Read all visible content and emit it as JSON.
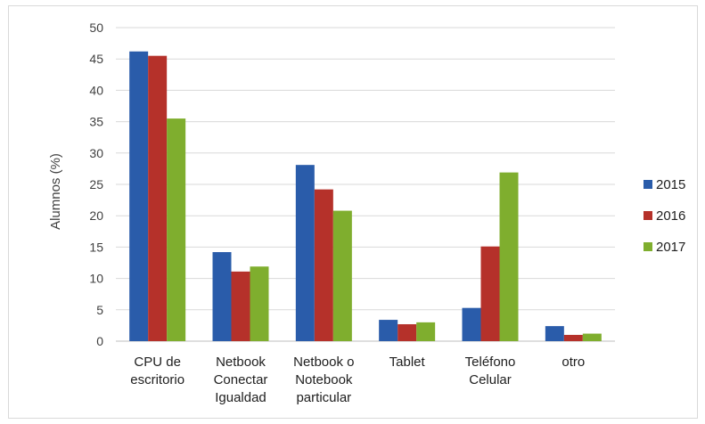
{
  "chart_data": {
    "type": "bar",
    "categories": [
      [
        "CPU de",
        "escritorio"
      ],
      [
        "Netbook",
        "Conectar",
        "Igualdad"
      ],
      [
        "Netbook o",
        "Notebook",
        "particular"
      ],
      [
        "Tablet"
      ],
      [
        "Teléfono",
        "Celular"
      ],
      [
        "otro"
      ]
    ],
    "series": [
      {
        "name": "2015",
        "color": "#2a5caa",
        "values": [
          46.2,
          14.2,
          28.1,
          3.4,
          5.3,
          2.4
        ]
      },
      {
        "name": "2016",
        "color": "#b5312a",
        "values": [
          45.5,
          11.1,
          24.2,
          2.7,
          15.1,
          1.0
        ]
      },
      {
        "name": "2017",
        "color": "#7fae2e",
        "values": [
          35.5,
          11.9,
          20.8,
          3.0,
          26.9,
          1.2
        ]
      }
    ],
    "ylabel": "Alumnos (%)",
    "ylim": [
      0,
      50
    ],
    "yticks": [
      0,
      5,
      10,
      15,
      20,
      25,
      30,
      35,
      40,
      45,
      50
    ],
    "grid": true,
    "legend": "right"
  }
}
